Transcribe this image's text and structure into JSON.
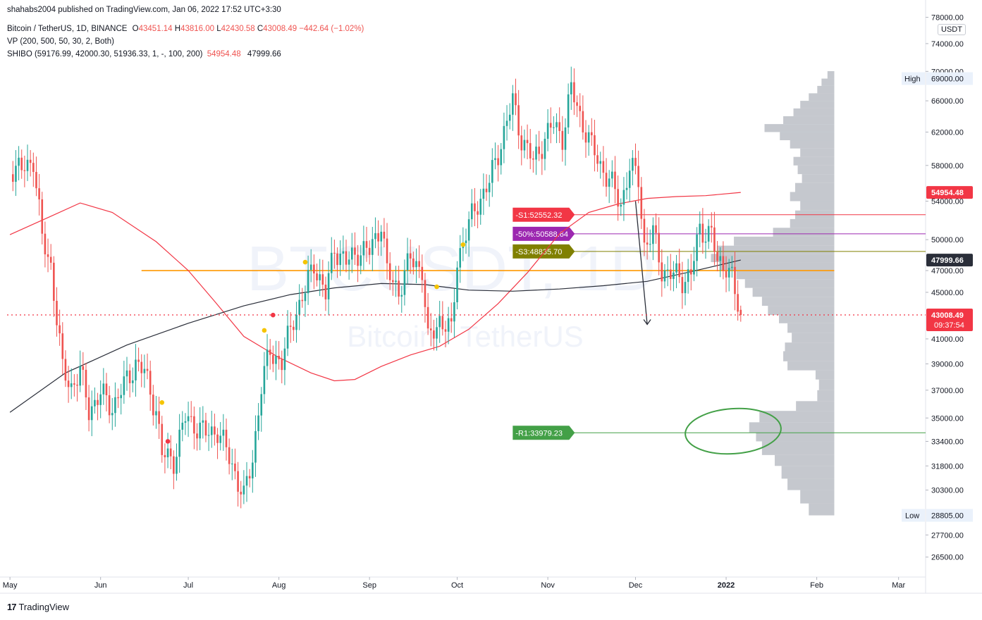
{
  "publisher_line": "shahabs2004 published on TradingView.com, Jan 06, 2022 17:52 UTC+3:30",
  "legend": {
    "symbol": "Bitcoin / TetherUS, 1D, BINANCE",
    "o_label": "O",
    "o": "43451.14",
    "h_label": "H",
    "h": "43816.00",
    "l_label": "L",
    "l": "42430.58",
    "c_label": "C",
    "c": "43008.49",
    "change": "−442.64 (−1.02%)",
    "vp": "VP (200, 500, 50, 30, 2, Both)",
    "shibo": "SHIBO (59176.99, 42000.30, 51936.33, 1, -, 100, 200)",
    "shibo_v1": "54954.48",
    "shibo_v2": "47999.66"
  },
  "unit_badge": "USDT",
  "watermark": {
    "symbol": "BTCUSDT, 1D",
    "name": "Bitcoin / TetherUS"
  },
  "footer_brand": "TradingView",
  "colors": {
    "up": "#26a69a",
    "down": "#ef5350",
    "ma_red": "#f23645",
    "ma_black": "#2a2e39",
    "orange": "#ff9800",
    "s1": "#f23645",
    "mid50": "#9c27b0",
    "s3": "#808000",
    "r1": "#43a047",
    "vp": "#b2b5be",
    "last_price": "#f23645"
  },
  "chart_data": {
    "type": "candlestick",
    "y_scale": "log",
    "ylim": [
      25500,
      78500
    ],
    "y_ticks": [
      "78000.00",
      "74000.00",
      "70000.00",
      "66000.00",
      "62000.00",
      "58000.00",
      "54000.00",
      "50000.00",
      "47000.00",
      "45000.00",
      "41000.00",
      "39000.00",
      "37000.00",
      "35000.00",
      "33400.00",
      "31800.00",
      "30300.00",
      "27700.00",
      "26500.00"
    ],
    "x_ticks": [
      {
        "label": "May",
        "date": "2021-05-01"
      },
      {
        "label": "Jun",
        "date": "2021-06-01"
      },
      {
        "label": "Jul",
        "date": "2021-07-01"
      },
      {
        "label": "Aug",
        "date": "2021-08-01"
      },
      {
        "label": "Sep",
        "date": "2021-09-01"
      },
      {
        "label": "Oct",
        "date": "2021-10-01"
      },
      {
        "label": "Nov",
        "date": "2021-11-01"
      },
      {
        "label": "Dec",
        "date": "2021-12-01"
      },
      {
        "label": "2022",
        "date": "2022-01-01"
      },
      {
        "label": "Feb",
        "date": "2022-02-01"
      },
      {
        "label": "Mar",
        "date": "2022-03-01"
      }
    ],
    "xlim": [
      "2021-04-30",
      "2022-03-10"
    ],
    "price_series": [
      [
        "2021-05-01",
        57800
      ],
      [
        "2021-05-05",
        57400
      ],
      [
        "2021-05-09",
        58800
      ],
      [
        "2021-05-12",
        50000
      ],
      [
        "2021-05-15",
        47500
      ],
      [
        "2021-05-19",
        38500
      ],
      [
        "2021-05-22",
        37300
      ],
      [
        "2021-05-25",
        38400
      ],
      [
        "2021-05-28",
        35600
      ],
      [
        "2021-06-01",
        36700
      ],
      [
        "2021-06-05",
        35800
      ],
      [
        "2021-06-09",
        37300
      ],
      [
        "2021-06-13",
        39100
      ],
      [
        "2021-06-16",
        38300
      ],
      [
        "2021-06-20",
        35600
      ],
      [
        "2021-06-22",
        32500
      ],
      [
        "2021-06-26",
        32200
      ],
      [
        "2021-06-30",
        35000
      ],
      [
        "2021-07-03",
        34600
      ],
      [
        "2021-07-07",
        33900
      ],
      [
        "2021-07-11",
        34200
      ],
      [
        "2021-07-14",
        32800
      ],
      [
        "2021-07-17",
        31400
      ],
      [
        "2021-07-20",
        29800
      ],
      [
        "2021-07-23",
        32300
      ],
      [
        "2021-07-26",
        37300
      ],
      [
        "2021-07-29",
        40000
      ],
      [
        "2021-08-02",
        39100
      ],
      [
        "2021-08-06",
        42800
      ],
      [
        "2021-08-10",
        45100
      ],
      [
        "2021-08-13",
        47800
      ],
      [
        "2021-08-17",
        44700
      ],
      [
        "2021-08-20",
        49300
      ],
      [
        "2021-08-24",
        47700
      ],
      [
        "2021-08-28",
        48900
      ],
      [
        "2021-09-01",
        48800
      ],
      [
        "2021-09-05",
        51800
      ],
      [
        "2021-09-07",
        46800
      ],
      [
        "2021-09-11",
        45200
      ],
      [
        "2021-09-15",
        48100
      ],
      [
        "2021-09-19",
        47200
      ],
      [
        "2021-09-21",
        40700
      ],
      [
        "2021-09-25",
        42700
      ],
      [
        "2021-09-29",
        41500
      ],
      [
        "2021-10-01",
        48100
      ],
      [
        "2021-10-05",
        51500
      ],
      [
        "2021-10-08",
        53900
      ],
      [
        "2021-10-12",
        56000
      ],
      [
        "2021-10-16",
        60800
      ],
      [
        "2021-10-20",
        65900
      ],
      [
        "2021-10-23",
        61300
      ],
      [
        "2021-10-27",
        58400
      ],
      [
        "2021-10-31",
        61300
      ],
      [
        "2021-11-03",
        62900
      ],
      [
        "2021-11-06",
        61500
      ],
      [
        "2021-11-09",
        67500
      ],
      [
        "2021-11-12",
        64100
      ],
      [
        "2021-11-16",
        60100
      ],
      [
        "2021-11-19",
        58100
      ],
      [
        "2021-11-22",
        56300
      ],
      [
        "2021-11-26",
        53700
      ],
      [
        "2021-11-29",
        57800
      ],
      [
        "2021-12-02",
        56500
      ],
      [
        "2021-12-04",
        49400
      ],
      [
        "2021-12-07",
        50600
      ],
      [
        "2021-12-10",
        47100
      ],
      [
        "2021-12-13",
        46700
      ],
      [
        "2021-12-17",
        46200
      ],
      [
        "2021-12-20",
        46700
      ],
      [
        "2021-12-23",
        51000
      ],
      [
        "2021-12-27",
        50700
      ],
      [
        "2021-12-29",
        47500
      ],
      [
        "2022-01-01",
        47700
      ],
      [
        "2022-01-03",
        46400
      ],
      [
        "2022-01-05",
        43400
      ],
      [
        "2022-01-06",
        43008.49
      ]
    ],
    "last_candle": {
      "o": 43451.14,
      "h": 43816.0,
      "l": 42430.58,
      "c": 43008.49
    },
    "ma_red_series": [
      [
        "2021-05-01",
        50500
      ],
      [
        "2021-05-15",
        52400
      ],
      [
        "2021-05-25",
        53800
      ],
      [
        "2021-06-05",
        52800
      ],
      [
        "2021-06-20",
        49800
      ],
      [
        "2021-07-01",
        47000
      ],
      [
        "2021-07-10",
        44200
      ],
      [
        "2021-07-20",
        41200
      ],
      [
        "2021-08-01",
        39500
      ],
      [
        "2021-08-12",
        38300
      ],
      [
        "2021-08-20",
        37700
      ],
      [
        "2021-08-27",
        37800
      ],
      [
        "2021-09-05",
        38800
      ],
      [
        "2021-09-15",
        39700
      ],
      [
        "2021-09-25",
        40400
      ],
      [
        "2021-10-05",
        41800
      ],
      [
        "2021-10-15",
        44000
      ],
      [
        "2021-10-25",
        46800
      ],
      [
        "2021-11-05",
        50600
      ],
      [
        "2021-11-15",
        52800
      ],
      [
        "2021-11-25",
        53700
      ],
      [
        "2021-12-05",
        54300
      ],
      [
        "2021-12-15",
        54500
      ],
      [
        "2021-12-25",
        54600
      ],
      [
        "2022-01-06",
        54954.48
      ]
    ],
    "ma_black_series": [
      [
        "2021-05-01",
        35400
      ],
      [
        "2021-05-20",
        38300
      ],
      [
        "2021-06-10",
        40500
      ],
      [
        "2021-07-01",
        42300
      ],
      [
        "2021-07-20",
        43800
      ],
      [
        "2021-08-05",
        44800
      ],
      [
        "2021-08-20",
        45400
      ],
      [
        "2021-09-05",
        45800
      ],
      [
        "2021-09-20",
        45700
      ],
      [
        "2021-10-05",
        45200
      ],
      [
        "2021-10-20",
        45100
      ],
      [
        "2021-11-05",
        45300
      ],
      [
        "2021-11-20",
        45600
      ],
      [
        "2021-12-05",
        46000
      ],
      [
        "2021-12-20",
        46900
      ],
      [
        "2022-01-06",
        47999.66
      ]
    ],
    "levels": [
      {
        "name": "S1",
        "label": "-S1:52552.32",
        "value": 52552.32,
        "color": "#f23645"
      },
      {
        "name": "50%",
        "label": "-50%:50588.64",
        "value": 50588.64,
        "color": "#9c27b0"
      },
      {
        "name": "S3",
        "label": "-S3:48835.70",
        "value": 48835.7,
        "color": "#808000"
      },
      {
        "name": "R1",
        "label": "-R1:33979.23",
        "value": 33979.23,
        "color": "#43a047"
      }
    ],
    "orange_level": 47000,
    "high": {
      "label": "High",
      "value": "69000.00"
    },
    "low": {
      "label": "Low",
      "value": "28805.00"
    },
    "price_badges": [
      {
        "value": "54954.48",
        "color": "#f23645"
      },
      {
        "value": "47999.66",
        "color": "#2a2e39"
      },
      {
        "value": "43008.49",
        "sub": "09:37:54",
        "color": "#f23645"
      }
    ],
    "volume_profile": [
      [
        28805,
        0.3
      ],
      [
        29500,
        0.4
      ],
      [
        30300,
        0.55
      ],
      [
        31000,
        0.62
      ],
      [
        31800,
        0.7
      ],
      [
        32500,
        0.85
      ],
      [
        33400,
        0.92
      ],
      [
        34000,
        1.0
      ],
      [
        34700,
        0.88
      ],
      [
        35500,
        0.45
      ],
      [
        36200,
        0.2
      ],
      [
        37000,
        0.18
      ],
      [
        37800,
        0.22
      ],
      [
        38500,
        0.55
      ],
      [
        39200,
        0.6
      ],
      [
        40000,
        0.58
      ],
      [
        40700,
        0.5
      ],
      [
        41500,
        0.55
      ],
      [
        42300,
        0.65
      ],
      [
        43000,
        0.78
      ],
      [
        43800,
        0.85
      ],
      [
        44600,
        0.96
      ],
      [
        45400,
        1.05
      ],
      [
        46200,
        1.15
      ],
      [
        47000,
        1.35
      ],
      [
        47800,
        1.45
      ],
      [
        48600,
        1.38
      ],
      [
        49400,
        1.18
      ],
      [
        50300,
        0.72
      ],
      [
        51200,
        0.52
      ],
      [
        52100,
        0.46
      ],
      [
        53000,
        0.4
      ],
      [
        54000,
        0.52
      ],
      [
        55000,
        0.46
      ],
      [
        56000,
        0.38
      ],
      [
        57000,
        0.43
      ],
      [
        58000,
        0.48
      ],
      [
        59000,
        0.4
      ],
      [
        60000,
        0.52
      ],
      [
        61000,
        0.64
      ],
      [
        62000,
        0.82
      ],
      [
        63000,
        0.6
      ],
      [
        64000,
        0.48
      ],
      [
        65000,
        0.4
      ],
      [
        66000,
        0.3
      ],
      [
        67000,
        0.2
      ],
      [
        68000,
        0.15
      ],
      [
        69000,
        0.08
      ]
    ],
    "signal_dots": [
      {
        "date": "2021-06-22",
        "value": 36100,
        "color": "#f5c400"
      },
      {
        "date": "2021-06-24",
        "value": 33400,
        "color": "#f23645"
      },
      {
        "date": "2021-07-27",
        "value": 41700,
        "color": "#f5c400"
      },
      {
        "date": "2021-07-30",
        "value": 43000,
        "color": "#f23645"
      },
      {
        "date": "2021-08-10",
        "value": 47800,
        "color": "#f5c400"
      },
      {
        "date": "2021-09-24",
        "value": 45500,
        "color": "#f5c400"
      },
      {
        "date": "2021-10-03",
        "value": 49500,
        "color": "#f5c400"
      }
    ],
    "drawn_arrow": {
      "from": [
        "2021-12-01",
        54000
      ],
      "to": [
        "2021-12-05",
        42200
      ]
    }
  }
}
